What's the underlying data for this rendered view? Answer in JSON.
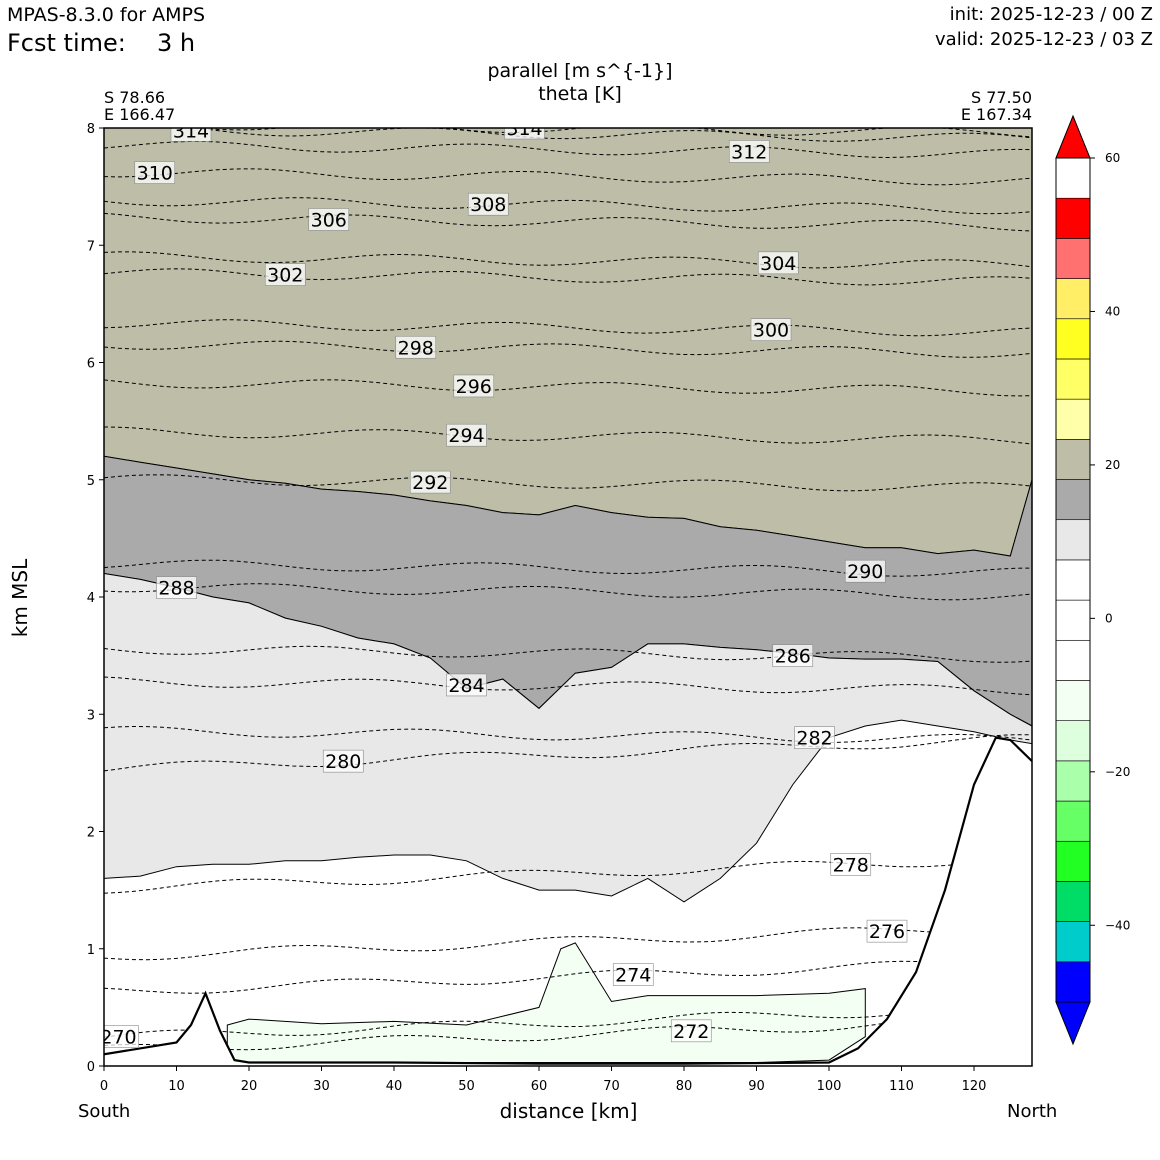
{
  "header": {
    "model": "MPAS-8.3.0 for AMPS",
    "fcst_label": "Fcst time:",
    "fcst_value": "3 h",
    "init": "init: 2025-12-23 / 00 Z",
    "valid": "valid: 2025-12-23 / 03 Z"
  },
  "chart_data": {
    "type": "contour",
    "title": "parallel [m s^{-1}]",
    "subtitle": "theta [K]",
    "xlabel": "distance [km]",
    "ylabel": "km MSL",
    "xlim": [
      0,
      128
    ],
    "ylim": [
      0,
      8
    ],
    "x_ticks": [
      0,
      10,
      20,
      30,
      40,
      50,
      60,
      70,
      80,
      90,
      100,
      110,
      120
    ],
    "y_ticks": [
      0,
      1,
      2,
      3,
      4,
      5,
      6,
      7,
      8
    ],
    "start_point": [
      "S 78.66",
      "E 166.47"
    ],
    "end_point": [
      "S 77.50",
      "E 167.34"
    ],
    "direction_left": "South",
    "direction_right": "North",
    "colorbar": {
      "levels": [
        -55,
        -50,
        -45,
        -40,
        -35,
        -30,
        -25,
        -20,
        -15,
        -10,
        -5,
        0,
        5,
        10,
        15,
        20,
        25,
        30,
        35,
        40,
        45,
        50,
        55,
        60
      ],
      "colors": [
        "#0000ff",
        "#0000ff",
        "#00cccc",
        "#00dd66",
        "#22ff22",
        "#66ff66",
        "#aaffaa",
        "#ddffdd",
        "#f2fff2",
        "#ffffff",
        "#ffffff",
        "#ffffff",
        "#e8e8e8",
        "#aaaaaa",
        "#bebea8",
        "#ffffaa",
        "#ffff66",
        "#ffff22",
        "#ffee66",
        "#ff7070",
        "#ff0000",
        "#ff0000"
      ],
      "tick_values": [
        60,
        40,
        20,
        0,
        -20,
        -40
      ],
      "tick_labels": [
        "60",
        "40",
        "20",
        "0",
        "−20",
        "−40"
      ],
      "extend": "both"
    },
    "wind_regions": [
      {
        "range": "20 to 25",
        "color": "#bebea8",
        "x": [
          0,
          5,
          10,
          15,
          20,
          25,
          30,
          35,
          40,
          45,
          50,
          55,
          60,
          65,
          70,
          75,
          80,
          85,
          90,
          95,
          100,
          105,
          110,
          115,
          120,
          125,
          128
        ],
        "top": [
          8,
          8,
          8,
          8,
          8,
          8,
          8,
          8,
          8,
          8,
          8,
          8,
          8,
          8,
          8,
          8,
          8,
          8,
          8,
          8,
          8,
          8,
          8,
          8,
          8,
          8,
          8
        ],
        "bottom": [
          5.2,
          5.15,
          5.1,
          5.05,
          5.0,
          4.97,
          4.92,
          4.9,
          4.87,
          4.82,
          4.78,
          4.72,
          4.7,
          4.78,
          4.72,
          4.68,
          4.67,
          4.6,
          4.57,
          4.52,
          4.47,
          4.42,
          4.42,
          4.37,
          4.4,
          4.35,
          5.0
        ]
      },
      {
        "range": "15 to 20",
        "color": "#aaaaaa",
        "x": [
          0,
          5,
          10,
          15,
          20,
          25,
          30,
          35,
          40,
          45,
          50,
          55,
          60,
          65,
          70,
          75,
          80,
          85,
          90,
          95,
          100,
          105,
          110,
          115,
          120,
          125,
          128
        ],
        "top": [
          5.2,
          5.15,
          5.1,
          5.05,
          5.0,
          4.97,
          4.92,
          4.9,
          4.87,
          4.82,
          4.78,
          4.72,
          4.7,
          4.78,
          4.72,
          4.68,
          4.67,
          4.6,
          4.57,
          4.52,
          4.47,
          4.42,
          4.42,
          4.37,
          4.4,
          4.35,
          5.0
        ],
        "bottom": [
          4.2,
          4.15,
          4.08,
          4.0,
          3.95,
          3.82,
          3.75,
          3.65,
          3.6,
          3.48,
          3.22,
          3.3,
          3.05,
          3.35,
          3.4,
          3.6,
          3.6,
          3.57,
          3.55,
          3.52,
          3.48,
          3.47,
          3.47,
          3.45,
          3.2,
          3.0,
          2.9
        ]
      },
      {
        "range": "10 to 15",
        "color": "#e8e8e8",
        "x": [
          0,
          5,
          10,
          15,
          20,
          25,
          30,
          35,
          40,
          45,
          50,
          55,
          60,
          65,
          70,
          75,
          80,
          85,
          90,
          95,
          100,
          105,
          110,
          115,
          120,
          125,
          128
        ],
        "top": [
          4.2,
          4.15,
          4.08,
          4.0,
          3.95,
          3.82,
          3.75,
          3.65,
          3.6,
          3.48,
          3.22,
          3.3,
          3.05,
          3.35,
          3.4,
          3.6,
          3.6,
          3.57,
          3.55,
          3.52,
          3.48,
          3.47,
          3.47,
          3.45,
          3.2,
          3.0,
          2.9
        ],
        "bottom": [
          1.6,
          1.62,
          1.7,
          1.72,
          1.72,
          1.75,
          1.75,
          1.78,
          1.8,
          1.8,
          1.75,
          1.6,
          1.5,
          1.5,
          1.45,
          1.6,
          1.4,
          1.6,
          1.9,
          2.4,
          2.8,
          2.9,
          2.95,
          2.9,
          2.85,
          2.78,
          2.75
        ]
      },
      {
        "range": "-10 to -15",
        "color": "#f2fff2",
        "x": [
          17,
          20,
          30,
          40,
          50,
          60,
          63,
          65,
          70,
          75,
          80,
          90,
          100,
          105
        ],
        "top": [
          0.35,
          0.4,
          0.36,
          0.38,
          0.35,
          0.5,
          1.0,
          1.05,
          0.55,
          0.6,
          0.6,
          0.6,
          0.62,
          0.66
        ],
        "bottom": [
          0.05,
          0.03,
          0.03,
          0.03,
          0.03,
          0.03,
          0.03,
          0.03,
          0.03,
          0.03,
          0.03,
          0.03,
          0.05,
          0.25
        ]
      }
    ],
    "terrain": {
      "x": [
        0,
        10,
        12,
        14,
        16,
        18,
        20,
        40,
        60,
        80,
        100,
        104,
        108,
        112,
        116,
        120,
        123,
        125,
        128
      ],
      "y": [
        0.1,
        0.2,
        0.35,
        0.62,
        0.3,
        0.05,
        0.03,
        0.03,
        0.02,
        0.02,
        0.03,
        0.15,
        0.4,
        0.8,
        1.5,
        2.4,
        2.8,
        2.78,
        2.6
      ]
    },
    "theta_contours": [
      {
        "level": 270,
        "label": "270",
        "label_pos": [
          2,
          0.25
        ]
      },
      {
        "level": 272,
        "label": "272",
        "label_pos": [
          81,
          0.3
        ]
      },
      {
        "level": 274,
        "label": "274",
        "label_pos": [
          73,
          0.78
        ]
      },
      {
        "level": 276,
        "label": "276",
        "label_pos": [
          108,
          1.15
        ]
      },
      {
        "level": 278,
        "label": "278",
        "label_pos": [
          103,
          1.72
        ]
      },
      {
        "level": 280,
        "label": "280",
        "label_pos": [
          33,
          2.6
        ]
      },
      {
        "level": 282,
        "label": "282",
        "label_pos": [
          98,
          2.8
        ]
      },
      {
        "level": 284,
        "label": "284",
        "label_pos": [
          50,
          3.25
        ]
      },
      {
        "level": 286,
        "label": "286",
        "label_pos": [
          95,
          3.5
        ]
      },
      {
        "level": 288,
        "label": "288",
        "label_pos": [
          10,
          4.08
        ]
      },
      {
        "level": 290,
        "label": "290",
        "label_pos": [
          105,
          4.22
        ]
      },
      {
        "level": 292,
        "label": "292",
        "label_pos": [
          45,
          4.98
        ]
      },
      {
        "level": 294,
        "label": "294",
        "label_pos": [
          50,
          5.38
        ]
      },
      {
        "level": 296,
        "label": "296",
        "label_pos": [
          51,
          5.8
        ]
      },
      {
        "level": 298,
        "label": "298",
        "label_pos": [
          43,
          6.13
        ]
      },
      {
        "level": 300,
        "label": "300",
        "label_pos": [
          92,
          6.28
        ]
      },
      {
        "level": 302,
        "label": "302",
        "label_pos": [
          25,
          6.75
        ]
      },
      {
        "level": 304,
        "label": "304",
        "label_pos": [
          93,
          6.85
        ]
      },
      {
        "level": 306,
        "label": "306",
        "label_pos": [
          31,
          7.22
        ]
      },
      {
        "level": 308,
        "label": "308",
        "label_pos": [
          53,
          7.35
        ]
      },
      {
        "level": 310,
        "label": "310",
        "label_pos": [
          7,
          7.62
        ]
      },
      {
        "level": 312,
        "label": "312",
        "label_pos": [
          89,
          7.8
        ]
      },
      {
        "level": 314,
        "label": "314",
        "label_pos": [
          12,
          7.98
        ]
      },
      {
        "level": 314,
        "label": "314",
        "label_pos": [
          58,
          8.0
        ]
      }
    ]
  }
}
